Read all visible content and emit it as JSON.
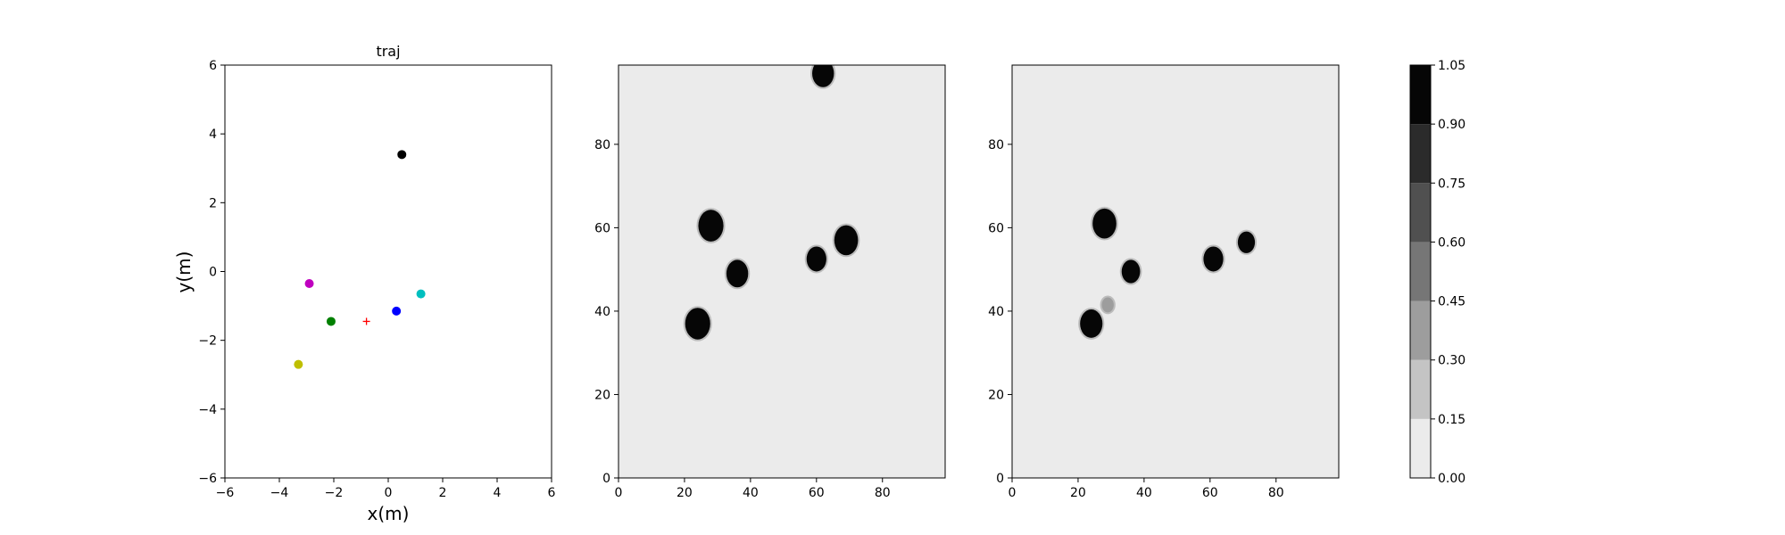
{
  "chart_data": [
    {
      "type": "scatter",
      "title": "traj",
      "xlabel": "x(m)",
      "ylabel": "y(m)",
      "xlim": [
        -6,
        6
      ],
      "ylim": [
        -6,
        6
      ],
      "xticks": [
        -6,
        -4,
        -2,
        0,
        2,
        4,
        6
      ],
      "yticks": [
        -6,
        -4,
        -2,
        0,
        2,
        4,
        6
      ],
      "grid": false,
      "points": [
        {
          "x": 0.5,
          "y": 3.4,
          "color": "#000000",
          "marker": "circle"
        },
        {
          "x": -2.9,
          "y": -0.35,
          "color": "#bf00bf",
          "marker": "circle"
        },
        {
          "x": 1.2,
          "y": -0.65,
          "color": "#00bfbf",
          "marker": "circle"
        },
        {
          "x": 0.3,
          "y": -1.15,
          "color": "#0000ff",
          "marker": "circle"
        },
        {
          "x": -2.1,
          "y": -1.45,
          "color": "#008000",
          "marker": "circle"
        },
        {
          "x": -0.8,
          "y": -1.45,
          "color": "#ff0000",
          "marker": "plus"
        },
        {
          "x": -3.3,
          "y": -2.7,
          "color": "#bfbf00",
          "marker": "circle"
        }
      ]
    },
    {
      "type": "heatmap",
      "title": "",
      "xlim": [
        0,
        99
      ],
      "ylim": [
        0,
        99
      ],
      "xticks": [
        0,
        20,
        40,
        60,
        80
      ],
      "yticks": [
        0,
        20,
        40,
        60,
        80
      ],
      "background_value": 0.05,
      "blobs": [
        {
          "x": 62,
          "y": 97,
          "r": 3.3,
          "value": 1.0
        },
        {
          "x": 28,
          "y": 60.5,
          "r": 3.8,
          "value": 1.0
        },
        {
          "x": 36,
          "y": 49,
          "r": 3.3,
          "value": 1.0
        },
        {
          "x": 24,
          "y": 37,
          "r": 3.8,
          "value": 1.0
        },
        {
          "x": 60,
          "y": 52.5,
          "r": 3.0,
          "value": 1.0
        },
        {
          "x": 69,
          "y": 57,
          "r": 3.6,
          "value": 1.0
        }
      ]
    },
    {
      "type": "heatmap",
      "title": "",
      "xlim": [
        0,
        99
      ],
      "ylim": [
        0,
        99
      ],
      "xticks": [
        0,
        20,
        40,
        60,
        80
      ],
      "yticks": [
        0,
        20,
        40,
        60,
        80
      ],
      "background_value": 0.05,
      "blobs": [
        {
          "x": 28,
          "y": 61,
          "r": 3.6,
          "value": 1.0
        },
        {
          "x": 36,
          "y": 49.5,
          "r": 2.8,
          "value": 1.0
        },
        {
          "x": 24,
          "y": 37,
          "r": 3.4,
          "value": 1.0
        },
        {
          "x": 61,
          "y": 52.5,
          "r": 3.0,
          "value": 1.0
        },
        {
          "x": 71,
          "y": 56.5,
          "r": 2.6,
          "value": 1.0
        },
        {
          "x": 29,
          "y": 41.5,
          "r": 1.8,
          "value": 0.3
        }
      ]
    },
    {
      "type": "colorbar",
      "levels": [
        0.0,
        0.15,
        0.3,
        0.45,
        0.6,
        0.75,
        0.9,
        1.05
      ],
      "tick_labels": [
        "0.00",
        "0.15",
        "0.30",
        "0.45",
        "0.60",
        "0.75",
        "0.90",
        "1.05"
      ],
      "colors": [
        "#ebebeb",
        "#c4c4c4",
        "#9d9d9d",
        "#767676",
        "#505050",
        "#2b2b2b",
        "#060606"
      ]
    }
  ]
}
